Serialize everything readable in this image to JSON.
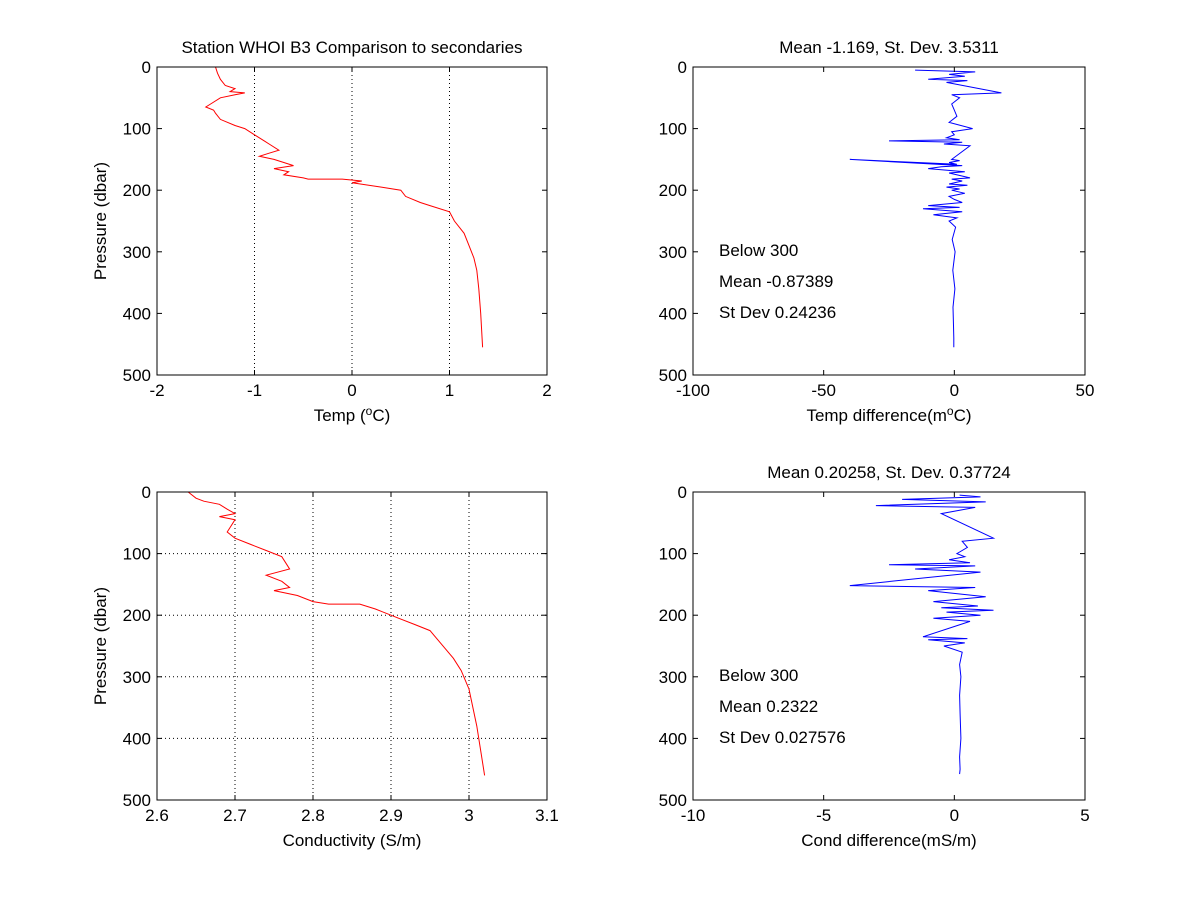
{
  "chart_data": [
    {
      "type": "line",
      "title": "Station  WHOI B3 Comparison to secondaries",
      "xlabel": "Temp (",
      "xlabel_sup": "o",
      "xlabel_tail": "C)",
      "ylabel": "Pressure (dbar)",
      "xlim": [
        -2,
        2
      ],
      "ylim": [
        0,
        500
      ],
      "y_reversed": true,
      "xticks": [
        -2,
        -1,
        0,
        1,
        2
      ],
      "xtick_labels": [
        "-2",
        "-1",
        "0",
        "1",
        "2"
      ],
      "yticks": [
        0,
        100,
        200,
        300,
        400,
        500
      ],
      "ytick_labels": [
        "0",
        "100",
        "200",
        "300",
        "400",
        "500"
      ],
      "grid": "x-dotted",
      "line_color": "#ff0000",
      "series": [
        {
          "x": [
            -1.4,
            -1.38,
            -1.35,
            -1.3,
            -1.2,
            -1.25,
            -1.1,
            -1.2,
            -1.35,
            -1.45,
            -1.5,
            -1.42,
            -1.4,
            -1.35,
            -1.2,
            -1.1,
            -1.0,
            -0.9,
            -0.85,
            -0.75,
            -0.85,
            -0.95,
            -0.8,
            -0.7,
            -0.6,
            -0.8,
            -0.65,
            -0.7,
            -0.5,
            -0.45,
            -0.3,
            -0.1,
            0.1,
            0.0,
            0.3,
            0.5,
            0.55,
            0.7,
            0.8,
            1.0,
            1.05,
            1.15,
            1.2,
            1.25,
            1.28,
            1.3,
            1.32,
            1.34
          ],
          "y": [
            0,
            10,
            20,
            30,
            35,
            40,
            42,
            45,
            50,
            60,
            65,
            70,
            75,
            85,
            95,
            100,
            110,
            120,
            125,
            135,
            140,
            145,
            150,
            155,
            160,
            165,
            170,
            175,
            180,
            182,
            182,
            182,
            185,
            188,
            195,
            200,
            210,
            220,
            225,
            235,
            250,
            270,
            290,
            310,
            330,
            360,
            400,
            455
          ]
        }
      ]
    },
    {
      "type": "line",
      "title": "Mean -1.169, St. Dev. 3.5311",
      "xlabel": "Temp difference(m",
      "xlabel_sup": "o",
      "xlabel_tail": "C)",
      "ylabel": "",
      "xlim": [
        -100,
        50
      ],
      "ylim": [
        0,
        500
      ],
      "y_reversed": true,
      "xticks": [
        -100,
        -50,
        0,
        50
      ],
      "xtick_labels": [
        "-100",
        "-50",
        "0",
        "50"
      ],
      "yticks": [
        0,
        100,
        200,
        300,
        400,
        500
      ],
      "ytick_labels": [
        "0",
        "100",
        "200",
        "300",
        "400",
        "500"
      ],
      "grid": "none",
      "line_color": "#0000ff",
      "annotations": [
        "Below 300",
        "Mean -0.87389",
        "St Dev 0.24236"
      ],
      "series": [
        {
          "x": [
            -15,
            8,
            -2,
            4,
            -10,
            5,
            -3,
            18,
            -1,
            2,
            -1,
            0,
            1,
            -2,
            7,
            -1,
            0,
            -3,
            2,
            -25,
            3,
            -4,
            6,
            -1,
            2,
            -2,
            1,
            -40,
            3,
            -5,
            -10,
            4,
            -2,
            6,
            -1,
            3,
            -2,
            5,
            -3,
            2,
            -1,
            4,
            -2,
            0,
            3,
            -10,
            2,
            -12,
            3,
            -8,
            1,
            -2,
            0.5,
            -0.8,
            0.3,
            -0.6,
            0.2,
            -0.5,
            -0.3,
            -0.2,
            -0.2
          ],
          "y": [
            5,
            8,
            12,
            15,
            20,
            22,
            25,
            42,
            45,
            50,
            60,
            70,
            80,
            90,
            100,
            105,
            110,
            115,
            118,
            120,
            122,
            125,
            128,
            150,
            152,
            155,
            158,
            150,
            160,
            162,
            165,
            170,
            172,
            180,
            182,
            185,
            190,
            192,
            195,
            198,
            200,
            205,
            210,
            215,
            220,
            225,
            228,
            230,
            235,
            240,
            245,
            250,
            260,
            280,
            300,
            330,
            360,
            390,
            420,
            440,
            455
          ]
        }
      ]
    },
    {
      "type": "line",
      "title": "",
      "xlabel": "Conductivity (S/m)",
      "ylabel": "Pressure (dbar)",
      "xlim": [
        2.6,
        3.1
      ],
      "ylim": [
        0,
        500
      ],
      "y_reversed": true,
      "xticks": [
        2.6,
        2.7,
        2.8,
        2.9,
        3.0,
        3.1
      ],
      "xtick_labels": [
        "2.6",
        "2.7",
        "2.8",
        "2.9",
        "3",
        "3.1"
      ],
      "yticks": [
        0,
        100,
        200,
        300,
        400,
        500
      ],
      "ytick_labels": [
        "0",
        "100",
        "200",
        "300",
        "400",
        "500"
      ],
      "grid": "both-dotted",
      "line_color": "#ff0000",
      "series": [
        {
          "x": [
            2.64,
            2.65,
            2.66,
            2.68,
            2.69,
            2.7,
            2.68,
            2.7,
            2.695,
            2.69,
            2.7,
            2.72,
            2.74,
            2.76,
            2.77,
            2.74,
            2.76,
            2.77,
            2.75,
            2.78,
            2.8,
            2.82,
            2.86,
            2.88,
            2.9,
            2.91,
            2.93,
            2.95,
            2.96,
            2.97,
            2.98,
            2.99,
            3.0,
            3.005,
            3.01,
            3.015,
            3.02
          ],
          "y": [
            0,
            10,
            15,
            20,
            28,
            35,
            40,
            45,
            55,
            65,
            75,
            85,
            95,
            105,
            125,
            135,
            145,
            155,
            160,
            168,
            178,
            182,
            182,
            190,
            200,
            205,
            215,
            225,
            240,
            255,
            270,
            290,
            320,
            350,
            380,
            420,
            460
          ]
        }
      ]
    },
    {
      "type": "line",
      "title": "Mean 0.20258, St. Dev. 0.37724",
      "xlabel": "Cond difference(mS/m)",
      "ylabel": "",
      "xlim": [
        -10,
        5
      ],
      "ylim": [
        0,
        500
      ],
      "y_reversed": true,
      "xticks": [
        -10,
        -5,
        0,
        5
      ],
      "xtick_labels": [
        "-10",
        "-5",
        "0",
        "5"
      ],
      "yticks": [
        0,
        100,
        200,
        300,
        400,
        500
      ],
      "ytick_labels": [
        "0",
        "100",
        "200",
        "300",
        "400",
        "500"
      ],
      "grid": "none",
      "line_color": "#0000ff",
      "annotations": [
        "Below 300",
        "Mean 0.2322",
        "St Dev 0.027576"
      ],
      "series": [
        {
          "x": [
            0.2,
            1.0,
            -2.0,
            1.2,
            -3.0,
            0.8,
            -0.5,
            1.5,
            0.3,
            0.5,
            0.1,
            0.4,
            -0.2,
            0.6,
            -2.5,
            0.8,
            -1.5,
            1.0,
            -4.0,
            0.8,
            -1.0,
            1.2,
            -0.8,
            0.9,
            -0.5,
            1.5,
            -0.3,
            1.0,
            -0.8,
            0.6,
            -1.2,
            0.5,
            -1.0,
            0.4,
            -0.4,
            0.3,
            0.2,
            0.25,
            0.2,
            0.22,
            0.25,
            0.2,
            0.22,
            0.2
          ],
          "y": [
            5,
            8,
            12,
            16,
            22,
            25,
            35,
            75,
            80,
            90,
            100,
            105,
            110,
            115,
            118,
            120,
            125,
            130,
            152,
            155,
            160,
            170,
            178,
            185,
            188,
            192,
            195,
            200,
            205,
            210,
            235,
            238,
            240,
            245,
            250,
            260,
            280,
            300,
            330,
            360,
            400,
            430,
            450,
            458
          ]
        }
      ]
    }
  ]
}
